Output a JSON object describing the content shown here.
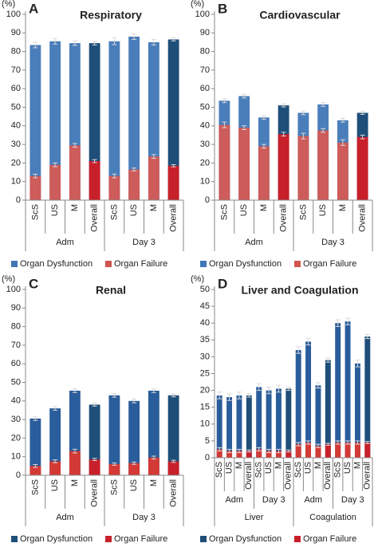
{
  "chart_data": [
    {
      "type": "bar",
      "letter": "A",
      "title": "Respiratory",
      "ylabel": "(%)",
      "groups": [
        {
          "label": "Adm",
          "categories": [
            "ScS",
            "US",
            "M",
            "Overall"
          ]
        },
        {
          "label": "Day 3",
          "categories": [
            "ScS",
            "US",
            "M",
            "Overall"
          ]
        }
      ],
      "ylim": [
        0,
        100
      ],
      "yticks": [
        0,
        10,
        20,
        30,
        40,
        50,
        60,
        70,
        80,
        90,
        100
      ],
      "series": [
        {
          "name": "Organ Dysfunction",
          "color": "#3f77b5",
          "colors": [
            "#4a7ebb",
            "#4a7ebb",
            "#4a7ebb",
            "#1f4e79",
            "#4a7ebb",
            "#4a7ebb",
            "#4a7ebb",
            "#1f4e79"
          ],
          "values": [
            83.5,
            85.5,
            84.5,
            84.5,
            85.5,
            88,
            85,
            86.5
          ],
          "errors": [
            1.5,
            1.5,
            1.2,
            1,
            1.8,
            1.5,
            1.5,
            0.8
          ]
        },
        {
          "name": "Organ Failure",
          "color": "#d0564f",
          "colors": [
            "#cd5c5a",
            "#cd5c5a",
            "#cd5c5a",
            "#c8202a",
            "#cd5c5a",
            "#cd5c5a",
            "#cd5c5a",
            "#c8202a"
          ],
          "values": [
            13,
            19,
            29.5,
            21,
            13,
            16.5,
            23.5,
            18.5
          ],
          "errors": [
            1,
            1,
            1,
            0.8,
            1,
            0.8,
            1,
            0.6
          ]
        }
      ]
    },
    {
      "type": "bar",
      "letter": "B",
      "title": "Cardiovascular",
      "ylabel": "(%)",
      "groups": [
        {
          "label": "Adm",
          "categories": [
            "ScS",
            "US",
            "M",
            "Overall"
          ]
        },
        {
          "label": "Day 3",
          "categories": [
            "ScS",
            "US",
            "M",
            "Overall"
          ]
        }
      ],
      "ylim": [
        0,
        100
      ],
      "yticks": [
        0,
        10,
        20,
        30,
        40,
        50,
        60,
        70,
        80,
        90,
        100
      ],
      "series": [
        {
          "name": "Organ Dysfunction",
          "color": "#3f77b5",
          "colors": [
            "#4a7ebb",
            "#4a7ebb",
            "#4a7ebb",
            "#1f4e79",
            "#4a7ebb",
            "#4a7ebb",
            "#4a7ebb",
            "#1f4e79"
          ],
          "values": [
            53.5,
            56,
            44.5,
            51,
            47,
            51.5,
            43,
            47
          ],
          "errors": [
            1,
            1,
            1,
            0.8,
            1,
            1,
            1,
            0.8
          ]
        },
        {
          "name": "Organ Failure",
          "color": "#d0564f",
          "colors": [
            "#cd5c5a",
            "#cd5c5a",
            "#cd5c5a",
            "#c8202a",
            "#cd5c5a",
            "#cd5c5a",
            "#cd5c5a",
            "#c8202a"
          ],
          "values": [
            40.5,
            39,
            29,
            35.5,
            34.5,
            37.5,
            31,
            34
          ],
          "errors": [
            1.5,
            1,
            1,
            1,
            1.5,
            1,
            1.5,
            1
          ]
        }
      ]
    },
    {
      "type": "bar",
      "letter": "C",
      "title": "Renal",
      "ylabel": "(%)",
      "groups": [
        {
          "label": "Adm",
          "categories": [
            "ScS",
            "US",
            "M",
            "Overall"
          ]
        },
        {
          "label": "Day 3",
          "categories": [
            "ScS",
            "US",
            "M",
            "Overall"
          ]
        }
      ],
      "ylim": [
        0,
        100
      ],
      "yticks": [
        0,
        10,
        20,
        30,
        40,
        50,
        60,
        70,
        80,
        90,
        100
      ],
      "series": [
        {
          "name": "Organ Dysfunction",
          "color": "#1f4e79",
          "colors": [
            "#2a5d9b",
            "#2a5d9b",
            "#2a5d9b",
            "#1f4e79",
            "#2a5d9b",
            "#2a5d9b",
            "#2a5d9b",
            "#1f4e79"
          ],
          "values": [
            30.5,
            36,
            45.5,
            38,
            43,
            40,
            45.5,
            43
          ],
          "errors": [
            1,
            1,
            1,
            0.8,
            1,
            1,
            1,
            0.8
          ]
        },
        {
          "name": "Organ Failure",
          "color": "#c8202a",
          "colors": [
            "#d33a36",
            "#d33a36",
            "#d33a36",
            "#c8202a",
            "#d33a36",
            "#d33a36",
            "#d33a36",
            "#c8202a"
          ],
          "values": [
            5,
            7.5,
            13,
            8.5,
            6,
            6.5,
            9.5,
            7.5
          ],
          "errors": [
            0.8,
            0.8,
            1,
            0.6,
            0.6,
            0.6,
            0.8,
            0.6
          ]
        }
      ]
    },
    {
      "type": "bar",
      "letter": "D",
      "title": "Liver and Coagulation",
      "ylabel": "(%)",
      "groups": [
        {
          "label": "Liver",
          "groups": [
            {
              "label": "Adm",
              "categories": [
                "ScS",
                "US",
                "M",
                "Overall"
              ]
            },
            {
              "label": "Day 3",
              "categories": [
                "ScS",
                "US",
                "M",
                "Overall"
              ]
            }
          ]
        },
        {
          "label": "Coagulation",
          "groups": [
            {
              "label": "Adm",
              "categories": [
                "ScS",
                "US",
                "M",
                "Overall"
              ]
            },
            {
              "label": "Day 3",
              "categories": [
                "ScS",
                "US",
                "M",
                "Overall"
              ]
            }
          ]
        }
      ],
      "ylim": [
        0,
        50
      ],
      "yticks": [
        0,
        5,
        10,
        15,
        20,
        25,
        30,
        35,
        40,
        45,
        50
      ],
      "series": [
        {
          "name": "Organ Dysfunction",
          "color": "#1f4e79",
          "colors": [
            "#2a5d9b",
            "#2a5d9b",
            "#2a5d9b",
            "#1f4e79",
            "#2a5d9b",
            "#2a5d9b",
            "#2a5d9b",
            "#1f4e79",
            "#2a5d9b",
            "#2a5d9b",
            "#2a5d9b",
            "#1f4e79",
            "#2a5d9b",
            "#2a5d9b",
            "#2a5d9b",
            "#1f4e79"
          ],
          "values": [
            18.5,
            18,
            18.5,
            18.5,
            21,
            20,
            20.5,
            20.5,
            32,
            34.5,
            21.5,
            29,
            40,
            40.5,
            28,
            36
          ],
          "errors": [
            1,
            1,
            1,
            0.5,
            1,
            1,
            1,
            0.5,
            1,
            1,
            0.8,
            0.6,
            1,
            1,
            1,
            0.6
          ]
        },
        {
          "name": "Organ Failure",
          "color": "#c8202a",
          "colors": [
            "#d33a36",
            "#d33a36",
            "#d33a36",
            "#c8202a",
            "#d33a36",
            "#d33a36",
            "#d33a36",
            "#c8202a",
            "#d33a36",
            "#d33a36",
            "#d33a36",
            "#c8202a",
            "#d33a36",
            "#d33a36",
            "#d33a36",
            "#c8202a"
          ],
          "values": [
            2.5,
            2,
            2,
            2,
            2.5,
            2,
            2,
            2,
            4,
            4.5,
            3.5,
            4,
            4.5,
            4.5,
            4.5,
            4.5
          ],
          "errors": [
            0.5,
            0.5,
            0.5,
            0.3,
            0.5,
            0.5,
            0.5,
            0.3,
            0.5,
            0.5,
            0.5,
            0.3,
            0.5,
            0.5,
            0.5,
            0.3
          ]
        }
      ]
    }
  ]
}
